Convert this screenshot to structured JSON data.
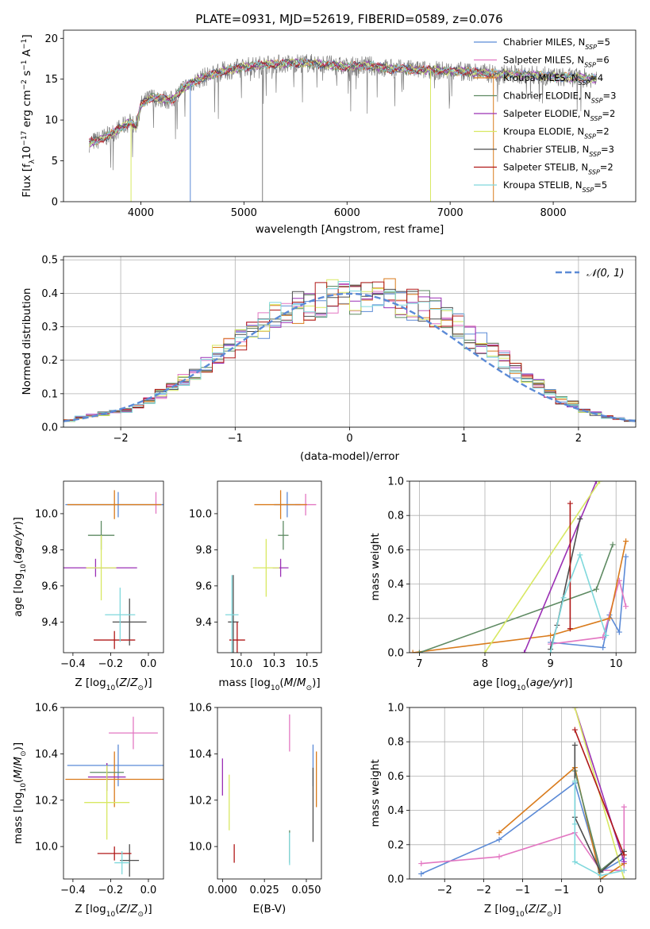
{
  "chart_data": [
    {
      "type": "line",
      "title": "PLATE=0931, MJD=52619, FIBERID=0589, z=0.076",
      "xlabel": "wavelength [Angstrom, rest frame]",
      "ylabel": "Flux [fλ10⁻¹⁷ erg cm⁻² s⁻¹ A⁻¹]",
      "xlim": [
        3250,
        8800
      ],
      "ylim": [
        0,
        21
      ],
      "xticks": [
        4000,
        5000,
        6000,
        7000,
        8000
      ],
      "yticks": [
        0,
        5,
        10,
        15,
        20
      ],
      "grid": false,
      "legend_position": "top-right",
      "spectrum_continuum": {
        "x": [
          3500,
          3600,
          3700,
          3800,
          3900,
          3950,
          4000,
          4100,
          4200,
          4300,
          4400,
          4500,
          4600,
          4700,
          4800,
          4900,
          5000,
          5200,
          5400,
          5600,
          5800,
          6000,
          6200,
          6400,
          6600,
          6800,
          7000,
          7200,
          7400,
          7600,
          7800,
          8000,
          8200,
          8400
        ],
        "y": [
          7.2,
          7.6,
          8.2,
          9.0,
          9.8,
          9.0,
          11.8,
          12.8,
          12.6,
          12.4,
          13.8,
          14.6,
          15.2,
          15.6,
          16.0,
          16.2,
          16.5,
          16.8,
          16.9,
          17.0,
          16.8,
          16.5,
          16.7,
          16.3,
          16.2,
          16.1,
          16.0,
          15.9,
          15.7,
          15.6,
          15.5,
          15.3,
          15.2,
          15.1
        ]
      },
      "legend": [
        "Chabrier MILES, N_SSP=5",
        "Salpeter MILES, N_SSP=6",
        "Kroupa MILES, N_SSP=4",
        "Chabrier ELODIE, N_SSP=3",
        "Salpeter ELODIE, N_SSP=2",
        "Kroupa ELODIE, N_SSP=2",
        "Chabrier STELIB, N_SSP=3",
        "Salpeter STELIB, N_SSP=2",
        "Kroupa STELIB, N_SSP=5"
      ],
      "series_colors": [
        "#5b8ad6",
        "#e377c2",
        "#d97b1c",
        "#5e8a62",
        "#9b30b5",
        "#d8e862",
        "#4d4d4d",
        "#b01818",
        "#7fd8dc"
      ]
    },
    {
      "type": "line",
      "xlabel": "(data-model)/error",
      "ylabel": "Normed distribution",
      "xlim": [
        -2.5,
        2.5
      ],
      "ylim": [
        0,
        0.51
      ],
      "xticks": [
        -2,
        -1,
        0,
        1,
        2
      ],
      "yticks": [
        0.0,
        0.1,
        0.2,
        0.3,
        0.4,
        0.5
      ],
      "grid": true,
      "legend_position": "top-right",
      "legend": [
        "𝒩(0, 1)"
      ],
      "reference_curve": "gaussian mean 0 sigma 1",
      "bin_edges": [
        -2.5,
        -2.4,
        -2.3,
        -2.2,
        -2.1,
        -2.0,
        -1.9,
        -1.8,
        -1.7,
        -1.6,
        -1.5,
        -1.4,
        -1.3,
        -1.2,
        -1.1,
        -1.0,
        -0.9,
        -0.8,
        -0.7,
        -0.6,
        -0.5,
        -0.4,
        -0.3,
        -0.2,
        -0.1,
        0.0,
        0.1,
        0.2,
        0.3,
        0.4,
        0.5,
        0.6,
        0.7,
        0.8,
        0.9,
        1.0,
        1.1,
        1.2,
        1.3,
        1.4,
        1.5,
        1.6,
        1.7,
        1.8,
        1.9,
        2.0,
        2.1,
        2.2,
        2.3,
        2.4,
        2.5
      ],
      "histogram_base": [
        0.02,
        0.03,
        0.035,
        0.04,
        0.045,
        0.05,
        0.06,
        0.08,
        0.1,
        0.12,
        0.14,
        0.16,
        0.19,
        0.22,
        0.24,
        0.26,
        0.28,
        0.3,
        0.33,
        0.34,
        0.36,
        0.37,
        0.38,
        0.39,
        0.39,
        0.39,
        0.4,
        0.4,
        0.39,
        0.38,
        0.37,
        0.36,
        0.34,
        0.32,
        0.3,
        0.27,
        0.25,
        0.22,
        0.2,
        0.17,
        0.15,
        0.13,
        0.1,
        0.08,
        0.07,
        0.05,
        0.04,
        0.03,
        0.025,
        0.02
      ]
    },
    {
      "type": "scatter",
      "xlabel": "Z [log₁₀(Z/Z⊙)]",
      "ylabel": "age  [log₁₀(age/yr)]",
      "xlim": [
        -0.45,
        0.08
      ],
      "ylim": [
        9.23,
        10.18
      ],
      "xticks": [
        -0.4,
        -0.2,
        0.0
      ],
      "yticks": [
        9.4,
        9.6,
        9.8,
        10.0
      ],
      "points": [
        {
          "x": -0.16,
          "y": 10.05,
          "xerr": 0.28,
          "yerr": 0.07,
          "color": "#5b8ad6"
        },
        {
          "x": 0.04,
          "y": 10.06,
          "xerr": 0.0,
          "yerr": 0.06,
          "color": "#e377c2"
        },
        {
          "x": -0.18,
          "y": 10.05,
          "xerr": 0.25,
          "yerr": 0.08,
          "color": "#d97b1c"
        },
        {
          "x": -0.25,
          "y": 9.88,
          "xerr": 0.07,
          "yerr": 0.08,
          "color": "#5e8a62"
        },
        {
          "x": -0.28,
          "y": 9.7,
          "xerr": 0.22,
          "yerr": 0.05,
          "color": "#9b30b5"
        },
        {
          "x": -0.25,
          "y": 9.7,
          "xerr": 0.08,
          "yerr": 0.18,
          "color": "#d8e862"
        },
        {
          "x": -0.1,
          "y": 9.4,
          "xerr": 0.09,
          "yerr": 0.13,
          "color": "#4d4d4d"
        },
        {
          "x": -0.18,
          "y": 9.3,
          "xerr": 0.11,
          "yerr": 0.05,
          "color": "#b01818"
        },
        {
          "x": -0.15,
          "y": 9.44,
          "xerr": 0.08,
          "yerr": 0.15,
          "color": "#7fd8dc"
        }
      ]
    },
    {
      "type": "scatter",
      "xlabel": "mass [log₁₀(M/M⊙)]",
      "ylabel": "",
      "xlim": [
        9.82,
        10.61
      ],
      "ylim": [
        9.23,
        10.18
      ],
      "xticks": [
        10.0,
        10.25,
        10.5
      ],
      "yticks": [
        9.4,
        9.6,
        9.8,
        10.0
      ],
      "points": [
        {
          "x": 10.35,
          "y": 10.05,
          "xerr": 0.1,
          "yerr": 0.07,
          "color": "#5b8ad6"
        },
        {
          "x": 10.49,
          "y": 10.05,
          "xerr": 0.08,
          "yerr": 0.06,
          "color": "#e377c2"
        },
        {
          "x": 10.3,
          "y": 10.05,
          "xerr": 0.2,
          "yerr": 0.08,
          "color": "#d97b1c"
        },
        {
          "x": 10.32,
          "y": 9.88,
          "xerr": 0.04,
          "yerr": 0.08,
          "color": "#5e8a62"
        },
        {
          "x": 10.3,
          "y": 9.7,
          "xerr": 0.06,
          "yerr": 0.05,
          "color": "#9b30b5"
        },
        {
          "x": 10.19,
          "y": 9.7,
          "xerr": 0.1,
          "yerr": 0.16,
          "color": "#d8e862"
        },
        {
          "x": 9.94,
          "y": 9.4,
          "xerr": 0.04,
          "yerr": 0.26,
          "color": "#4d4d4d"
        },
        {
          "x": 9.97,
          "y": 9.3,
          "xerr": 0.06,
          "yerr": 0.1,
          "color": "#b01818"
        },
        {
          "x": 9.93,
          "y": 9.44,
          "xerr": 0.05,
          "yerr": 0.22,
          "color": "#7fd8dc"
        }
      ]
    },
    {
      "type": "line",
      "xlabel": "age  [log₁₀(age/yr)]",
      "ylabel": "mass weight",
      "xlim": [
        6.85,
        10.3
      ],
      "ylim": [
        0,
        1
      ],
      "xticks": [
        7,
        8,
        9,
        10
      ],
      "yticks": [
        0.0,
        0.2,
        0.4,
        0.6,
        0.8,
        1.0
      ],
      "grid": true,
      "series": [
        {
          "color": "#5b8ad6",
          "x": [
            9.0,
            9.8,
            9.9,
            10.05,
            10.15
          ],
          "y": [
            0.06,
            0.03,
            0.22,
            0.12,
            0.56
          ]
        },
        {
          "color": "#e377c2",
          "x": [
            9.0,
            9.8,
            10.05,
            10.15
          ],
          "y": [
            0.05,
            0.09,
            0.42,
            0.27
          ]
        },
        {
          "color": "#d97b1c",
          "x": [
            6.9,
            9.0,
            9.9,
            10.15
          ],
          "y": [
            0.0,
            0.1,
            0.2,
            0.65
          ]
        },
        {
          "color": "#5e8a62",
          "x": [
            7.0,
            9.7,
            9.95
          ],
          "y": [
            0.0,
            0.37,
            0.63
          ]
        },
        {
          "color": "#9b30b5",
          "x": [
            8.6,
            9.7
          ],
          "y": [
            0.0,
            1.0
          ]
        },
        {
          "color": "#d8e862",
          "x": [
            8.0,
            9.75
          ],
          "y": [
            0.0,
            1.0
          ]
        },
        {
          "color": "#4d4d4d",
          "x": [
            9.0,
            9.1,
            9.45
          ],
          "y": [
            0.02,
            0.16,
            0.78
          ]
        },
        {
          "color": "#b01818",
          "x": [
            9.3,
            9.3
          ],
          "y": [
            0.14,
            0.87
          ]
        },
        {
          "color": "#7fd8dc",
          "x": [
            9.0,
            9.2,
            9.45,
            9.85
          ],
          "y": [
            0.0,
            0.32,
            0.57,
            0.1
          ]
        }
      ]
    },
    {
      "type": "scatter",
      "xlabel": "Z [log₁₀(Z/Z⊙)]",
      "ylabel": "mass [log₁₀(M/M⊙)]",
      "xlim": [
        -0.45,
        0.08
      ],
      "ylim": [
        9.86,
        10.6
      ],
      "xticks": [
        -0.4,
        -0.2,
        0.0
      ],
      "yticks": [
        10.0,
        10.2,
        10.4,
        10.6
      ],
      "points": [
        {
          "x": -0.16,
          "y": 10.35,
          "xerr": 0.27,
          "yerr": 0.09,
          "color": "#5b8ad6"
        },
        {
          "x": -0.08,
          "y": 10.49,
          "xerr": 0.13,
          "yerr": 0.07,
          "color": "#e377c2"
        },
        {
          "x": -0.18,
          "y": 10.29,
          "xerr": 0.26,
          "yerr": 0.12,
          "color": "#d97b1c"
        },
        {
          "x": -0.22,
          "y": 10.32,
          "xerr": 0.09,
          "yerr": 0.04,
          "color": "#5e8a62"
        },
        {
          "x": -0.22,
          "y": 10.3,
          "xerr": 0.1,
          "yerr": 0.06,
          "color": "#9b30b5"
        },
        {
          "x": -0.22,
          "y": 10.19,
          "xerr": 0.12,
          "yerr": 0.16,
          "color": "#d8e862"
        },
        {
          "x": -0.1,
          "y": 9.94,
          "xerr": 0.05,
          "yerr": 0.07,
          "color": "#4d4d4d"
        },
        {
          "x": -0.18,
          "y": 9.97,
          "xerr": 0.09,
          "yerr": 0.03,
          "color": "#b01818"
        },
        {
          "x": -0.14,
          "y": 9.93,
          "xerr": 0.04,
          "yerr": 0.05,
          "color": "#7fd8dc"
        }
      ]
    },
    {
      "type": "scatter",
      "xlabel": "E(B-V)",
      "ylabel": "",
      "xlim": [
        -0.003,
        0.059
      ],
      "ylim": [
        9.86,
        10.6
      ],
      "xticks": [
        0.0,
        0.025,
        0.05
      ],
      "yticks": [
        10.0,
        10.2,
        10.4,
        10.6
      ],
      "points": [
        {
          "x": 0.054,
          "y": 10.35,
          "yerr": 0.09,
          "color": "#5b8ad6"
        },
        {
          "x": 0.04,
          "y": 10.49,
          "yerr": 0.08,
          "color": "#e377c2"
        },
        {
          "x": 0.056,
          "y": 10.29,
          "yerr": 0.12,
          "color": "#d97b1c"
        },
        {
          "x": 0.04,
          "y": 10.0,
          "yerr": 0.07,
          "color": "#5e8a62"
        },
        {
          "x": 0.0,
          "y": 10.3,
          "yerr": 0.08,
          "color": "#9b30b5"
        },
        {
          "x": 0.004,
          "y": 10.19,
          "yerr": 0.12,
          "color": "#d8e862"
        },
        {
          "x": 0.054,
          "y": 10.18,
          "yerr": 0.16,
          "color": "#4d4d4d"
        },
        {
          "x": 0.007,
          "y": 9.97,
          "yerr": 0.04,
          "color": "#b01818"
        },
        {
          "x": 0.04,
          "y": 9.99,
          "yerr": 0.07,
          "color": "#7fd8dc"
        }
      ]
    },
    {
      "type": "line",
      "xlabel": "Z [log₁₀(Z/Z⊙)]",
      "ylabel": "mass weight",
      "xlim": [
        -2.45,
        0.45
      ],
      "ylim": [
        0,
        1
      ],
      "xticks": [
        -2.0,
        -1.5,
        -1.0,
        -0.5,
        0.0
      ],
      "yticks": [
        0.0,
        0.2,
        0.4,
        0.6,
        0.8,
        1.0
      ],
      "grid": true,
      "series": [
        {
          "color": "#5b8ad6",
          "x": [
            -2.3,
            -1.3,
            -0.33,
            0.0,
            0.3
          ],
          "y": [
            0.03,
            0.23,
            0.56,
            0.04,
            0.12
          ]
        },
        {
          "color": "#e377c2",
          "x": [
            -2.3,
            -1.3,
            -0.33,
            0.0,
            0.3,
            0.3
          ],
          "y": [
            0.09,
            0.13,
            0.27,
            0.05,
            0.05,
            0.42
          ]
        },
        {
          "color": "#d97b1c",
          "x": [
            -1.3,
            -0.33,
            0.0,
            0.3
          ],
          "y": [
            0.27,
            0.65,
            0.0,
            0.09
          ]
        },
        {
          "color": "#5e8a62",
          "x": [
            -0.33,
            0.0,
            0.3
          ],
          "y": [
            0.63,
            0.05,
            0.16
          ]
        },
        {
          "color": "#9b30b5",
          "x": [
            -0.33,
            0.3
          ],
          "y": [
            1.0,
            0.1
          ]
        },
        {
          "color": "#d8e862",
          "x": [
            -0.33,
            0.3
          ],
          "y": [
            1.0,
            0.0
          ]
        },
        {
          "color": "#4d4d4d",
          "x": [
            -0.33,
            -0.33,
            0.0,
            0.3
          ],
          "y": [
            0.78,
            0.36,
            0.04,
            0.16
          ]
        },
        {
          "color": "#b01818",
          "x": [
            -0.33,
            0.3
          ],
          "y": [
            0.87,
            0.14
          ]
        },
        {
          "color": "#7fd8dc",
          "x": [
            -0.33,
            -0.33,
            -0.33,
            0.0,
            0.3
          ],
          "y": [
            0.57,
            0.32,
            0.1,
            0.02,
            0.05
          ]
        }
      ]
    }
  ]
}
